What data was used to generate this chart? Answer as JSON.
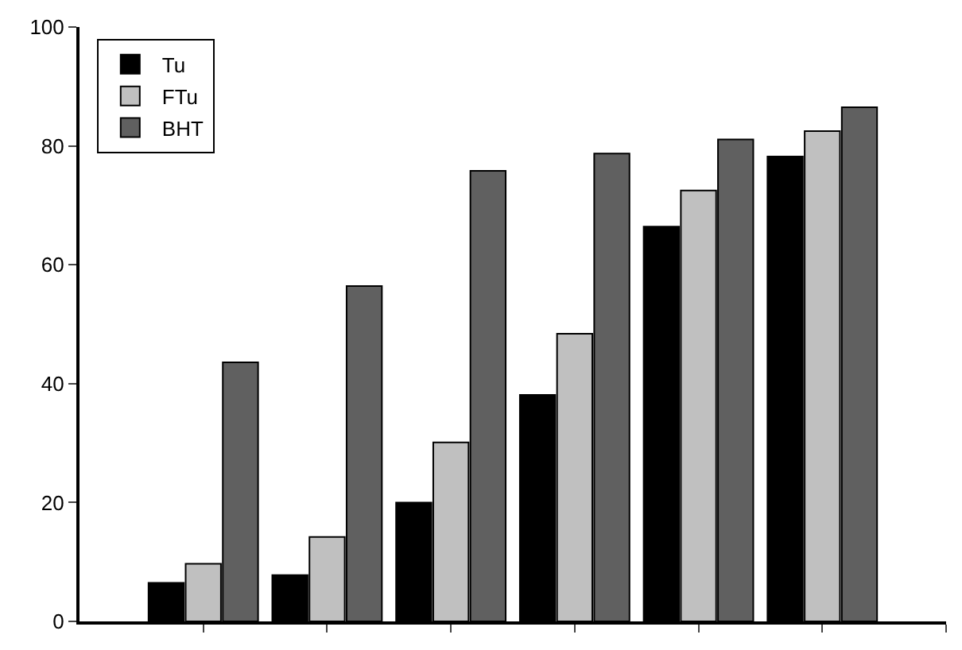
{
  "chart_data": {
    "type": "bar",
    "categories": [
      null,
      null,
      null,
      null,
      null,
      null
    ],
    "series": [
      {
        "name": "Tu",
        "color": "#000000",
        "values": [
          6.5,
          7.8,
          20,
          38.1,
          66.4,
          78.2
        ]
      },
      {
        "name": "FTu",
        "color": "#c0c0c0",
        "values": [
          9.7,
          14.2,
          30.1,
          48.4,
          72.5,
          82.5
        ]
      },
      {
        "name": "BHT",
        "color": "#606060",
        "values": [
          43.6,
          56.4,
          75.8,
          78.7,
          81.1,
          86.5
        ]
      }
    ],
    "ylim": [
      0,
      100
    ],
    "yticks": [
      0,
      20,
      40,
      60,
      80,
      100
    ],
    "grid": false,
    "legend": "top left",
    "tick_labels": "y"
  }
}
